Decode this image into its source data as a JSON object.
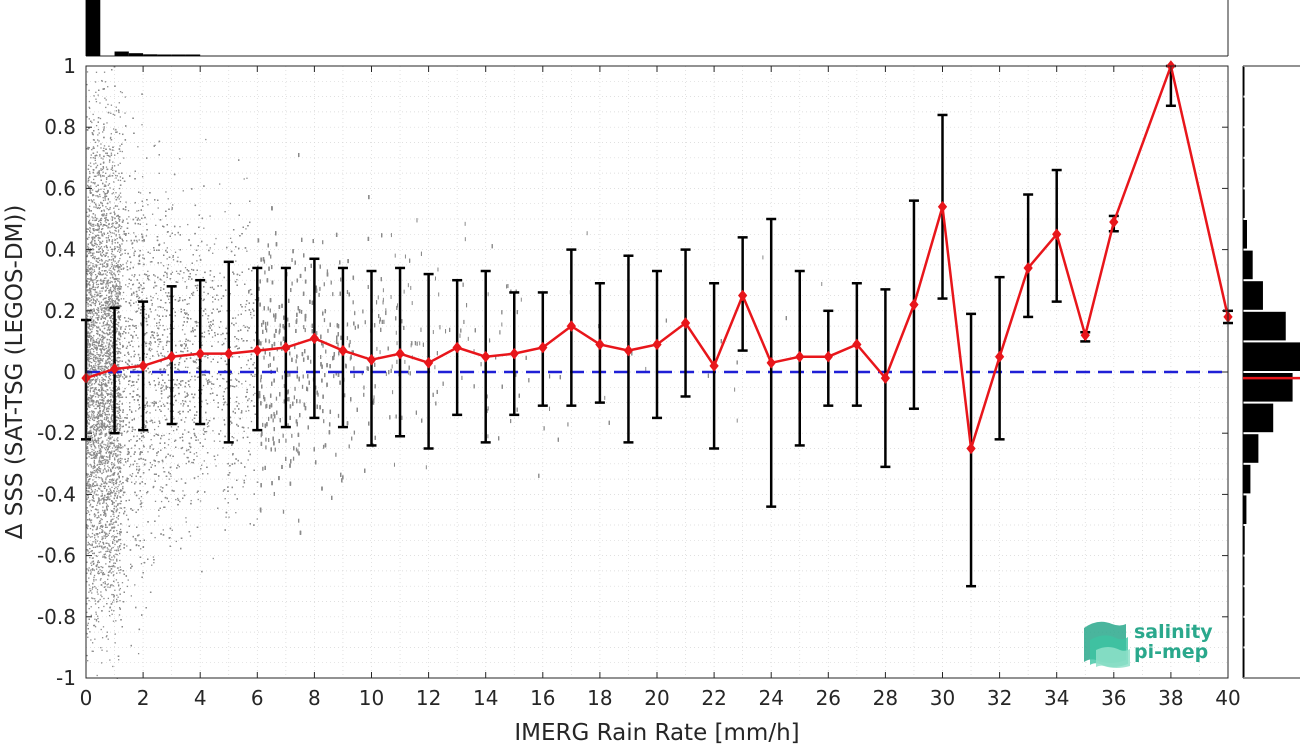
{
  "chart_data": {
    "type": "scatter",
    "title": "",
    "xlabel": "IMERG Rain Rate [mm/h]",
    "ylabel": "Δ SSS (SAT-TSG (LEGOS-DM))",
    "xlim": [
      0,
      40
    ],
    "ylim": [
      -1,
      1
    ],
    "x_ticks": [
      0,
      2,
      4,
      6,
      8,
      10,
      12,
      14,
      16,
      18,
      20,
      22,
      24,
      26,
      28,
      30,
      32,
      34,
      36,
      38,
      40
    ],
    "y_ticks": [
      -1,
      -0.8,
      -0.6,
      -0.4,
      -0.2,
      0,
      0.2,
      0.4,
      0.6,
      0.8,
      1
    ],
    "x_tick_labels": [
      "0",
      "2",
      "4",
      "6",
      "8",
      "10",
      "12",
      "14",
      "16",
      "18",
      "20",
      "22",
      "24",
      "26",
      "28",
      "30",
      "32",
      "34",
      "36",
      "38",
      "40"
    ],
    "y_tick_labels": [
      "-1",
      "-0.8",
      "-0.6",
      "-0.4",
      "-0.2",
      "0",
      "0.2",
      "0.4",
      "0.6",
      "0.8",
      "1"
    ],
    "grid": true,
    "zero_line": {
      "y": 0,
      "style": "dashed",
      "color": "#1f1fd6"
    },
    "binned_mean": {
      "x": [
        0,
        1,
        2,
        3,
        4,
        5,
        6,
        7,
        8,
        9,
        10,
        11,
        12,
        13,
        14,
        15,
        16,
        17,
        18,
        19,
        20,
        21,
        22,
        23,
        24,
        25,
        26,
        27,
        28,
        29,
        30,
        31,
        32,
        33,
        34,
        35,
        36,
        38,
        40
      ],
      "mean": [
        -0.02,
        0.01,
        0.02,
        0.05,
        0.06,
        0.06,
        0.07,
        0.08,
        0.11,
        0.07,
        0.04,
        0.06,
        0.03,
        0.08,
        0.05,
        0.06,
        0.08,
        0.15,
        0.09,
        0.07,
        0.09,
        0.16,
        0.02,
        0.25,
        0.03,
        0.05,
        0.05,
        0.09,
        -0.02,
        0.22,
        0.54,
        -0.25,
        0.05,
        0.34,
        0.45,
        0.12,
        0.49,
        1.02,
        0.18
      ],
      "lower": [
        -0.22,
        -0.2,
        -0.19,
        -0.17,
        -0.17,
        -0.23,
        -0.19,
        -0.18,
        -0.15,
        -0.18,
        -0.24,
        -0.21,
        -0.25,
        -0.14,
        -0.23,
        -0.14,
        -0.11,
        -0.11,
        -0.1,
        -0.23,
        -0.15,
        -0.08,
        -0.25,
        0.07,
        -0.44,
        -0.24,
        -0.11,
        -0.11,
        -0.31,
        -0.12,
        0.24,
        -0.7,
        -0.22,
        0.18,
        0.23,
        0.1,
        0.46,
        0.87,
        0.16
      ],
      "upper": [
        0.17,
        0.21,
        0.23,
        0.28,
        0.3,
        0.36,
        0.34,
        0.34,
        0.37,
        0.34,
        0.33,
        0.34,
        0.32,
        0.3,
        0.33,
        0.26,
        0.26,
        0.4,
        0.29,
        0.38,
        0.33,
        0.4,
        0.29,
        0.44,
        0.5,
        0.33,
        0.2,
        0.29,
        0.27,
        0.56,
        0.84,
        0.19,
        0.31,
        0.58,
        0.66,
        0.13,
        0.51,
        1.02,
        0.2
      ],
      "color": "#e8161b"
    },
    "scatter": {
      "color": "#8a8a8a",
      "description_bins": [
        {
          "x_max": 2,
          "density": "very high",
          "spread": 1.0
        },
        {
          "x_max": 6,
          "density": "high",
          "spread": 0.7
        },
        {
          "x_max": 12,
          "density": "medium",
          "spread": 0.5
        },
        {
          "x_max": 20,
          "density": "low",
          "spread": 0.4
        },
        {
          "x_max": 40,
          "density": "very low",
          "spread": 0.3
        }
      ]
    },
    "top_histogram": {
      "bin_centers": [
        0.25,
        0.75,
        1.25,
        1.75,
        2.25,
        2.75,
        3.25,
        3.75
      ],
      "relative_counts": [
        1.0,
        0.0,
        0.08,
        0.05,
        0.03,
        0.02,
        0.01,
        0.01
      ],
      "color": "#000000"
    },
    "right_histogram": {
      "bin_centers": [
        -0.95,
        -0.85,
        -0.75,
        -0.65,
        -0.55,
        -0.45,
        -0.35,
        -0.25,
        -0.15,
        -0.05,
        0.05,
        0.15,
        0.25,
        0.35,
        0.45,
        0.55,
        0.65,
        0.75,
        0.85,
        0.95
      ],
      "relative_counts": [
        0.01,
        0.01,
        0.02,
        0.02,
        0.03,
        0.06,
        0.13,
        0.27,
        0.53,
        0.87,
        1.0,
        0.75,
        0.35,
        0.17,
        0.07,
        0.03,
        0.02,
        0.01,
        0.01,
        0.01
      ],
      "mean_line_y": -0.02,
      "mean_line_color": "#e8161b",
      "color": "#000000"
    }
  },
  "logo": {
    "line1": "salinity",
    "line2": "pi-mep",
    "color": "#2aa88c"
  }
}
